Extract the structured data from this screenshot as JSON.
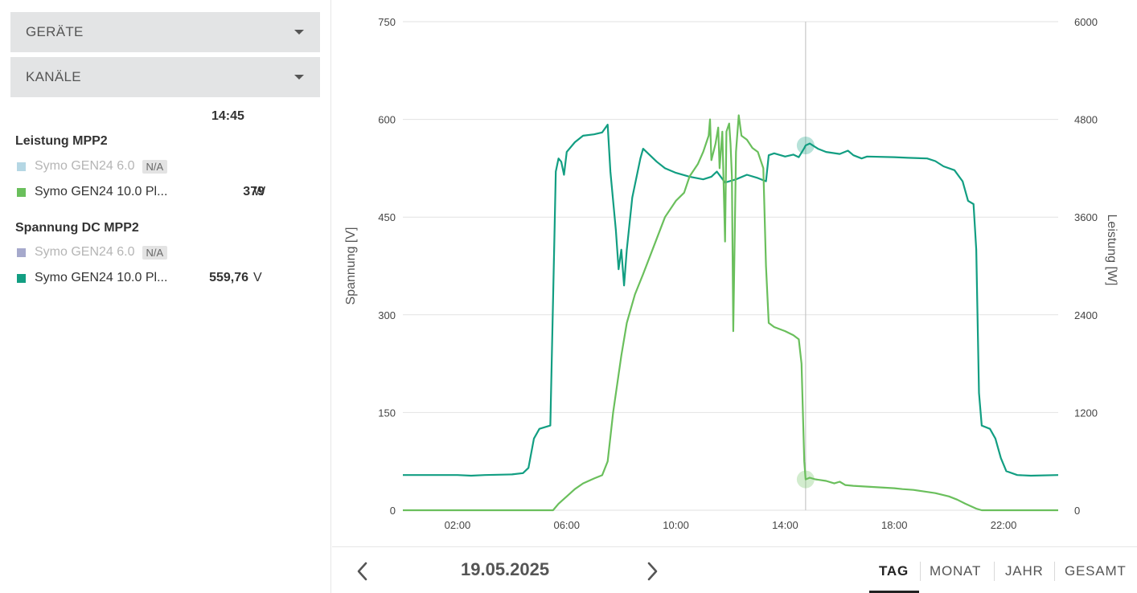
{
  "sidebar": {
    "devices_label": "GERÄTE",
    "channels_label": "KANÄLE",
    "time": "14:45",
    "groups": [
      {
        "title": "Leistung MPP2",
        "items": [
          {
            "name": "Symo GEN24 6.0",
            "badge": "N/A",
            "color": "#b5d7e4",
            "value": "",
            "unit": ""
          },
          {
            "name": "Symo GEN24 10.0 Pl...",
            "badge": "",
            "color": "#6abf5c",
            "value": "379",
            "unit": "W"
          }
        ]
      },
      {
        "title": "Spannung DC MPP2",
        "items": [
          {
            "name": "Symo GEN24 6.0",
            "badge": "N/A",
            "color": "#a6a9cc",
            "value": "",
            "unit": ""
          },
          {
            "name": "Symo GEN24 10.0 Pl...",
            "badge": "",
            "color": "#129e82",
            "value": "559,76",
            "unit": "V"
          }
        ]
      }
    ]
  },
  "chart_data": {
    "type": "line",
    "xlabel": "",
    "x_tick_labels": [
      "02:00",
      "06:00",
      "10:00",
      "14:00",
      "18:00",
      "22:00"
    ],
    "x_ticks_hours": [
      2,
      6,
      10,
      14,
      18,
      22
    ],
    "xlim_hours": [
      0,
      24
    ],
    "y_left": {
      "label": "Spannung [V]",
      "lim": [
        0,
        750
      ],
      "ticks": [
        0,
        150,
        300,
        450,
        600,
        750
      ]
    },
    "y_right": {
      "label": "Leistung [W]",
      "lim": [
        0,
        6000
      ],
      "ticks": [
        0,
        1200,
        2400,
        3600,
        4800,
        6000
      ]
    },
    "grid": true,
    "cursor_time": "14:45",
    "series": [
      {
        "axis": "left",
        "color": "#129e82",
        "points": [
          [
            0,
            54
          ],
          [
            1,
            54
          ],
          [
            2,
            54
          ],
          [
            2.5,
            53
          ],
          [
            3,
            54
          ],
          [
            4,
            55
          ],
          [
            4.4,
            57
          ],
          [
            4.6,
            65
          ],
          [
            4.8,
            110
          ],
          [
            5,
            125
          ],
          [
            5.4,
            130
          ],
          [
            5.55,
            420
          ],
          [
            5.6,
            520
          ],
          [
            5.7,
            540
          ],
          [
            5.8,
            535
          ],
          [
            5.9,
            515
          ],
          [
            6,
            550
          ],
          [
            6.3,
            565
          ],
          [
            6.6,
            575
          ],
          [
            7,
            577
          ],
          [
            7.3,
            580
          ],
          [
            7.5,
            592
          ],
          [
            7.6,
            520
          ],
          [
            7.8,
            430
          ],
          [
            7.9,
            370
          ],
          [
            8,
            400
          ],
          [
            8.1,
            345
          ],
          [
            8.2,
            400
          ],
          [
            8.4,
            480
          ],
          [
            8.7,
            540
          ],
          [
            8.8,
            555
          ],
          [
            9.3,
            535
          ],
          [
            9.6,
            525
          ],
          [
            10,
            518
          ],
          [
            10.5,
            512
          ],
          [
            11,
            508
          ],
          [
            11.3,
            512
          ],
          [
            11.5,
            520
          ],
          [
            11.8,
            503
          ],
          [
            12.2,
            508
          ],
          [
            12.6,
            515
          ],
          [
            13,
            510
          ],
          [
            13.3,
            505
          ],
          [
            13.4,
            545
          ],
          [
            13.6,
            548
          ],
          [
            14,
            543
          ],
          [
            14.3,
            546
          ],
          [
            14.5,
            542
          ],
          [
            14.7,
            556
          ],
          [
            14.75,
            560
          ],
          [
            14.9,
            563
          ],
          [
            15.2,
            555
          ],
          [
            15.5,
            550
          ],
          [
            16,
            547
          ],
          [
            16.3,
            552
          ],
          [
            16.5,
            545
          ],
          [
            16.8,
            540
          ],
          [
            17,
            543
          ],
          [
            18,
            542
          ],
          [
            18.5,
            541
          ],
          [
            19.2,
            540
          ],
          [
            19.5,
            536
          ],
          [
            19.8,
            528
          ],
          [
            20.2,
            522
          ],
          [
            20.5,
            505
          ],
          [
            20.7,
            475
          ],
          [
            20.9,
            470
          ],
          [
            21,
            400
          ],
          [
            21.1,
            180
          ],
          [
            21.2,
            130
          ],
          [
            21.5,
            125
          ],
          [
            21.7,
            110
          ],
          [
            21.9,
            80
          ],
          [
            22.1,
            60
          ],
          [
            22.5,
            54
          ],
          [
            23,
            53
          ],
          [
            24,
            54
          ]
        ]
      },
      {
        "axis": "right",
        "color": "#6abf5c",
        "points": [
          [
            0,
            0
          ],
          [
            5.5,
            0
          ],
          [
            5.7,
            80
          ],
          [
            6,
            170
          ],
          [
            6.3,
            260
          ],
          [
            6.6,
            330
          ],
          [
            7,
            390
          ],
          [
            7.3,
            430
          ],
          [
            7.5,
            600
          ],
          [
            7.7,
            1200
          ],
          [
            8,
            1900
          ],
          [
            8.2,
            2300
          ],
          [
            8.5,
            2650
          ],
          [
            8.8,
            2900
          ],
          [
            9.2,
            3250
          ],
          [
            9.6,
            3600
          ],
          [
            10,
            3800
          ],
          [
            10.3,
            3900
          ],
          [
            10.5,
            4100
          ],
          [
            10.8,
            4250
          ],
          [
            11,
            4400
          ],
          [
            11.2,
            4600
          ],
          [
            11.25,
            4800
          ],
          [
            11.3,
            4300
          ],
          [
            11.45,
            4500
          ],
          [
            11.55,
            4700
          ],
          [
            11.6,
            4200
          ],
          [
            11.7,
            4650
          ],
          [
            11.8,
            3300
          ],
          [
            11.85,
            4650
          ],
          [
            11.95,
            4750
          ],
          [
            12,
            4500
          ],
          [
            12.05,
            4100
          ],
          [
            12.1,
            2200
          ],
          [
            12.2,
            4400
          ],
          [
            12.3,
            4850
          ],
          [
            12.4,
            4600
          ],
          [
            12.6,
            4550
          ],
          [
            12.8,
            4450
          ],
          [
            13,
            4400
          ],
          [
            13.2,
            4200
          ],
          [
            13.3,
            3000
          ],
          [
            13.4,
            2300
          ],
          [
            13.6,
            2250
          ],
          [
            14,
            2200
          ],
          [
            14.3,
            2150
          ],
          [
            14.5,
            2100
          ],
          [
            14.6,
            1800
          ],
          [
            14.7,
            600
          ],
          [
            14.75,
            379
          ],
          [
            14.9,
            400
          ],
          [
            15.1,
            380
          ],
          [
            15.5,
            360
          ],
          [
            15.8,
            330
          ],
          [
            16,
            350
          ],
          [
            16.2,
            310
          ],
          [
            16.5,
            300
          ],
          [
            17,
            290
          ],
          [
            17.5,
            280
          ],
          [
            18,
            270
          ],
          [
            18.3,
            260
          ],
          [
            18.7,
            250
          ],
          [
            19,
            235
          ],
          [
            19.5,
            210
          ],
          [
            20,
            170
          ],
          [
            20.3,
            130
          ],
          [
            20.6,
            80
          ],
          [
            21,
            20
          ],
          [
            21.2,
            0
          ],
          [
            24,
            0
          ]
        ]
      }
    ]
  },
  "bottom": {
    "date": "19.05.2025",
    "tabs": [
      "TAG",
      "MONAT",
      "JAHR",
      "GESAMT"
    ],
    "active_tab": 0
  }
}
